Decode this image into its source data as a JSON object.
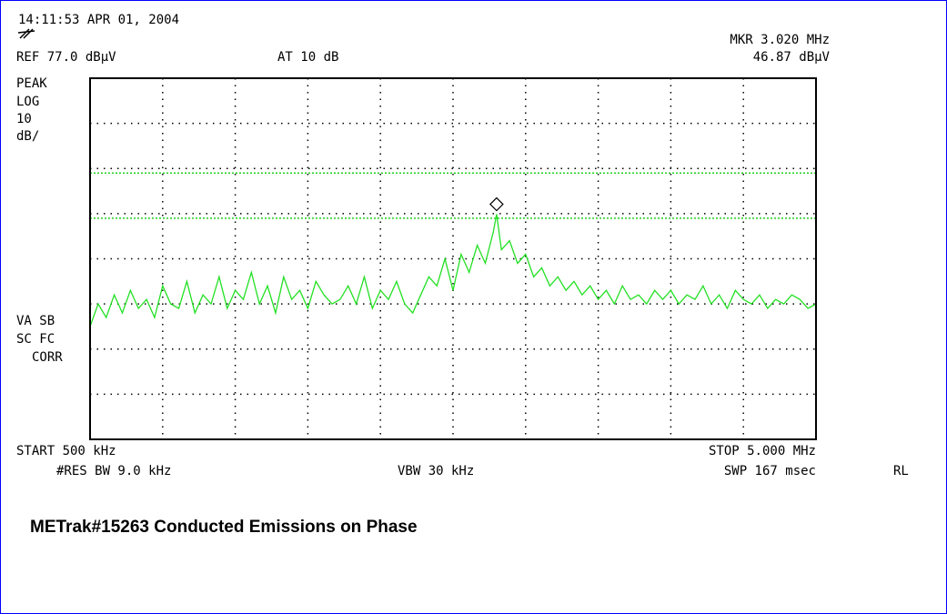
{
  "chart_data": {
    "type": "line",
    "header": "14:11:53 APR 01, 2004",
    "ref_label": "REF 77.0 dBµV",
    "atten_label": "AT 10 dB",
    "marker_freq_label": "MKR 3.020 MHz",
    "marker_level_label": "46.87 dBµV",
    "left_labels": [
      "PEAK",
      "LOG",
      "10",
      "dB/"
    ],
    "status_labels": [
      "VA SB",
      "SC FC",
      "CORR"
    ],
    "start_label": "START 500 kHz",
    "stop_label": "STOP 5.000 MHz",
    "rbw_label": "#RES BW 9.0 kHz",
    "vbw_label": "VBW 30 kHz",
    "sweep_label": "SWP 167 msec",
    "rl_label": "RL",
    "title": "METrak#15263 Conducted Emissions on Phase",
    "xlim": [
      0.5,
      5.0
    ],
    "ylim": [
      -3,
      77
    ],
    "xticks": [
      0.5,
      0.95,
      1.4,
      1.85,
      2.3,
      2.75,
      3.2,
      3.65,
      4.1,
      4.55,
      5.0
    ],
    "yticks": [
      -3,
      7,
      17,
      27,
      37,
      47,
      57,
      67,
      77
    ],
    "grid": true,
    "x": [
      0.5,
      0.55,
      0.6,
      0.65,
      0.7,
      0.75,
      0.8,
      0.85,
      0.9,
      0.95,
      1.0,
      1.05,
      1.1,
      1.15,
      1.2,
      1.25,
      1.3,
      1.35,
      1.4,
      1.45,
      1.5,
      1.55,
      1.6,
      1.65,
      1.7,
      1.75,
      1.8,
      1.85,
      1.9,
      1.95,
      2.0,
      2.05,
      2.1,
      2.15,
      2.2,
      2.25,
      2.3,
      2.35,
      2.4,
      2.45,
      2.5,
      2.55,
      2.6,
      2.65,
      2.7,
      2.75,
      2.8,
      2.85,
      2.9,
      2.95,
      3.0,
      3.02,
      3.05,
      3.1,
      3.15,
      3.2,
      3.25,
      3.3,
      3.35,
      3.4,
      3.45,
      3.5,
      3.55,
      3.6,
      3.65,
      3.7,
      3.75,
      3.8,
      3.85,
      3.9,
      3.95,
      4.0,
      4.05,
      4.1,
      4.15,
      4.2,
      4.25,
      4.3,
      4.35,
      4.4,
      4.45,
      4.5,
      4.55,
      4.6,
      4.65,
      4.7,
      4.75,
      4.8,
      4.85,
      4.9,
      4.95,
      5.0
    ],
    "series": [
      {
        "name": "trace",
        "color": "#22e022",
        "values": [
          22,
          27,
          24,
          29,
          25,
          30,
          26,
          28,
          24,
          31,
          27,
          26,
          32,
          25,
          29,
          27,
          33,
          26,
          30,
          28,
          34,
          27,
          31,
          25,
          33,
          28,
          30,
          26,
          32,
          29,
          27,
          28,
          31,
          27,
          33,
          26,
          30,
          28,
          32,
          27,
          25,
          29,
          33,
          31,
          37,
          30,
          38,
          34,
          40,
          36,
          43,
          46.87,
          39,
          41,
          36,
          38,
          33,
          35,
          31,
          33,
          30,
          32,
          29,
          31,
          28,
          30,
          27,
          31,
          28,
          29,
          27,
          30,
          28,
          30,
          27,
          29,
          28,
          31,
          27,
          29,
          26,
          30,
          28,
          27,
          29,
          26,
          28,
          27,
          29,
          28,
          26,
          27
        ]
      }
    ],
    "limit_lines": [
      56,
      46
    ],
    "limit_color": "#22d022",
    "marker": {
      "x": 3.02,
      "y": 46.87
    }
  }
}
